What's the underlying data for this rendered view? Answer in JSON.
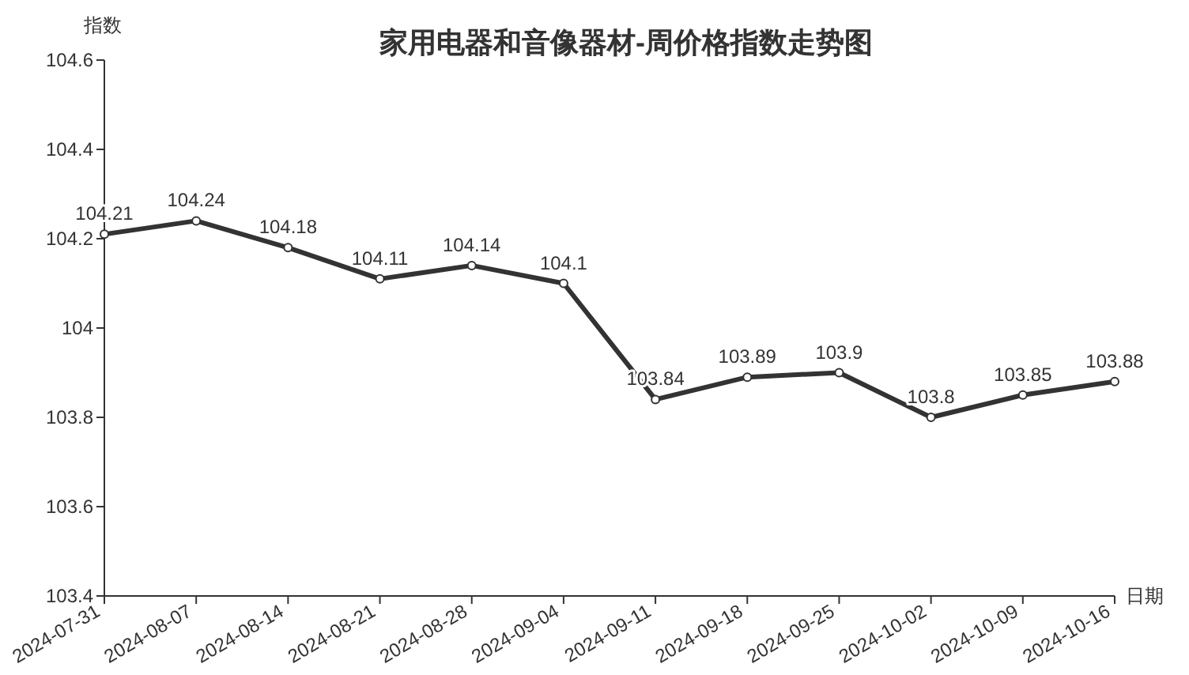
{
  "chart_data": {
    "type": "line",
    "title": "家用电器和音像器材-周价格指数走势图",
    "xlabel": "日期",
    "ylabel": "指数",
    "categories": [
      "2024-07-31",
      "2024-08-07",
      "2024-08-14",
      "2024-08-21",
      "2024-08-28",
      "2024-09-04",
      "2024-09-11",
      "2024-09-18",
      "2024-09-25",
      "2024-10-02",
      "2024-10-09",
      "2024-10-16"
    ],
    "series": [
      {
        "color": "#333333",
        "values": [
          104.21,
          104.24,
          104.18,
          104.11,
          104.14,
          104.1,
          103.84,
          103.89,
          103.9,
          103.8,
          103.85,
          103.88
        ]
      }
    ],
    "ylim": [
      103.4,
      104.6
    ],
    "yticks": [
      103.4,
      103.6,
      103.8,
      104,
      104.2,
      104.4,
      104.6
    ],
    "data_labels": true,
    "marker": "circle",
    "line_style": "solid"
  }
}
